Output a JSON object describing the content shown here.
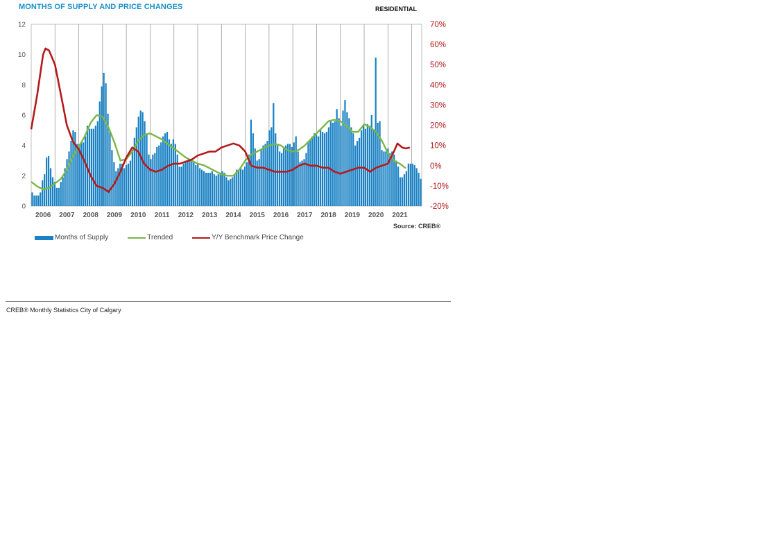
{
  "title": "MONTHS OF SUPPLY AND PRICE CHANGES",
  "subtitle": "RESIDENTIAL",
  "source": "Source: CREB®",
  "footer": "CREB® Monthly Statistics City of Calgary",
  "colors": {
    "bars": "#1a82c4",
    "trended": "#7ab648",
    "price": "#b41a1a",
    "title": "#1a8fc9"
  },
  "chart_data": {
    "type": "bar",
    "title": "MONTHS OF SUPPLY AND PRICE CHANGES",
    "left_axis": {
      "ylim": [
        0,
        12
      ],
      "ticks": [
        "0",
        "2",
        "4",
        "6",
        "8",
        "10",
        "12"
      ]
    },
    "right_axis": {
      "ylim": [
        -20,
        70
      ],
      "ticks": [
        "-20%",
        "-10%",
        "0%",
        "10%",
        "20%",
        "30%",
        "40%",
        "50%",
        "60%",
        "70%"
      ]
    },
    "x_ticks": [
      "2006",
      "2007",
      "2008",
      "2009",
      "2010",
      "2011",
      "2012",
      "2013",
      "2014",
      "2015",
      "2016",
      "2017",
      "2018",
      "2019",
      "2020",
      "2021"
    ],
    "legend": [
      "Months of Supply",
      "Trended",
      "Y/Y Benchmark Price Change"
    ],
    "series": [
      {
        "name": "Months of Supply",
        "kind": "bar",
        "axis": "left",
        "monthly_values": [
          0.9,
          0.7,
          0.7,
          0.7,
          0.9,
          1.7,
          2.1,
          3.2,
          3.3,
          2.5,
          1.9,
          1.6,
          1.2,
          1.2,
          1.6,
          1.9,
          2.5,
          3.1,
          3.6,
          4.3,
          5.0,
          4.9,
          4.1,
          4.1,
          4.2,
          4.2,
          4.6,
          5.3,
          5.1,
          5.1,
          5.1,
          5.3,
          5.6,
          6.9,
          7.9,
          8.8,
          8.1,
          6.1,
          4.9,
          3.7,
          2.9,
          2.3,
          2.5,
          2.8,
          2.8,
          2.5,
          2.7,
          2.8,
          3.0,
          3.7,
          4.5,
          5.2,
          5.9,
          6.3,
          6.2,
          5.6,
          4.7,
          3.4,
          3.1,
          3.4,
          3.5,
          3.9,
          4.0,
          4.2,
          4.6,
          4.8,
          4.9,
          4.4,
          4.1,
          4.4,
          4.1,
          3.4,
          2.6,
          2.6,
          2.8,
          3.0,
          3.0,
          3.1,
          3.0,
          2.9,
          2.7,
          2.8,
          2.5,
          2.4,
          2.3,
          2.2,
          2.2,
          2.2,
          2.3,
          2.1,
          2.0,
          2.1,
          2.2,
          2.3,
          2.2,
          1.9,
          1.7,
          1.8,
          1.9,
          2.1,
          2.4,
          2.4,
          2.5,
          2.4,
          2.6,
          2.9,
          3.4,
          5.7,
          4.8,
          3.8,
          3.0,
          3.1,
          3.7,
          4.0,
          4.1,
          4.3,
          5.0,
          5.2,
          6.8,
          4.8,
          4.0,
          3.6,
          3.5,
          3.8,
          4.0,
          4.1,
          4.1,
          3.9,
          4.2,
          4.6,
          3.6,
          2.9,
          3.0,
          3.1,
          3.5,
          4.2,
          4.4,
          4.6,
          4.8,
          4.7,
          4.6,
          5.0,
          4.9,
          4.8,
          4.9,
          5.2,
          5.6,
          5.5,
          5.6,
          6.4,
          5.8,
          5.3,
          6.3,
          7.0,
          6.2,
          5.8,
          5.2,
          4.8,
          4.0,
          4.3,
          4.5,
          5.0,
          5.3,
          5.1,
          5.4,
          5.3,
          6.0,
          5.0,
          9.8,
          5.5,
          5.6,
          3.7,
          3.6,
          3.6,
          3.8,
          3.5,
          3.6,
          3.4,
          3.0,
          2.6,
          1.9,
          1.9,
          2.1,
          2.3,
          2.8,
          2.8,
          2.8,
          2.7,
          2.5,
          2.2,
          1.8
        ]
      },
      {
        "name": "Trended",
        "kind": "line",
        "axis": "left",
        "points": [
          [
            2006.0,
            1.6
          ],
          [
            2006.25,
            1.3
          ],
          [
            2006.5,
            1.1
          ],
          [
            2006.75,
            1.2
          ],
          [
            2007.0,
            1.5
          ],
          [
            2007.25,
            1.8
          ],
          [
            2007.5,
            2.4
          ],
          [
            2007.75,
            3.3
          ],
          [
            2008.0,
            3.9
          ],
          [
            2008.25,
            4.6
          ],
          [
            2008.5,
            5.5
          ],
          [
            2008.75,
            6.0
          ],
          [
            2009.0,
            5.9
          ],
          [
            2009.25,
            5.2
          ],
          [
            2009.5,
            4.2
          ],
          [
            2009.75,
            3.0
          ],
          [
            2010.0,
            3.1
          ],
          [
            2010.25,
            3.6
          ],
          [
            2010.5,
            4.3
          ],
          [
            2010.75,
            4.7
          ],
          [
            2011.0,
            4.8
          ],
          [
            2011.25,
            4.6
          ],
          [
            2011.5,
            4.4
          ],
          [
            2011.75,
            4.1
          ],
          [
            2012.0,
            3.8
          ],
          [
            2012.25,
            3.5
          ],
          [
            2012.5,
            3.2
          ],
          [
            2012.75,
            3.0
          ],
          [
            2013.0,
            2.8
          ],
          [
            2013.25,
            2.7
          ],
          [
            2013.5,
            2.5
          ],
          [
            2013.75,
            2.3
          ],
          [
            2014.0,
            2.1
          ],
          [
            2014.25,
            2.0
          ],
          [
            2014.5,
            2.0
          ],
          [
            2014.75,
            2.4
          ],
          [
            2015.0,
            3.0
          ],
          [
            2015.25,
            3.4
          ],
          [
            2015.5,
            3.6
          ],
          [
            2015.75,
            3.8
          ],
          [
            2016.0,
            4.0
          ],
          [
            2016.25,
            4.1
          ],
          [
            2016.5,
            4.0
          ],
          [
            2016.75,
            3.7
          ],
          [
            2017.0,
            3.6
          ],
          [
            2017.25,
            3.7
          ],
          [
            2017.5,
            4.0
          ],
          [
            2017.75,
            4.4
          ],
          [
            2018.0,
            4.8
          ],
          [
            2018.25,
            5.2
          ],
          [
            2018.5,
            5.6
          ],
          [
            2018.75,
            5.7
          ],
          [
            2019.0,
            5.6
          ],
          [
            2019.25,
            5.3
          ],
          [
            2019.5,
            4.9
          ],
          [
            2019.75,
            4.9
          ],
          [
            2020.0,
            5.4
          ],
          [
            2020.25,
            5.2
          ],
          [
            2020.5,
            4.9
          ],
          [
            2020.75,
            4.3
          ],
          [
            2021.0,
            3.5
          ],
          [
            2021.25,
            3.0
          ],
          [
            2021.5,
            2.8
          ],
          [
            2021.75,
            2.5
          ]
        ]
      },
      {
        "name": "Y/Y Benchmark Price Change",
        "kind": "line",
        "axis": "right",
        "points": [
          [
            2006.0,
            18
          ],
          [
            2006.25,
            35
          ],
          [
            2006.5,
            55
          ],
          [
            2006.6,
            58
          ],
          [
            2006.75,
            57
          ],
          [
            2007.0,
            50
          ],
          [
            2007.25,
            35
          ],
          [
            2007.5,
            20
          ],
          [
            2007.75,
            12
          ],
          [
            2008.0,
            8
          ],
          [
            2008.25,
            2
          ],
          [
            2008.5,
            -5
          ],
          [
            2008.75,
            -10
          ],
          [
            2009.0,
            -11
          ],
          [
            2009.25,
            -13
          ],
          [
            2009.5,
            -9
          ],
          [
            2009.75,
            -3
          ],
          [
            2010.0,
            4
          ],
          [
            2010.25,
            9
          ],
          [
            2010.5,
            7
          ],
          [
            2010.75,
            1
          ],
          [
            2011.0,
            -2
          ],
          [
            2011.25,
            -3
          ],
          [
            2011.5,
            -2
          ],
          [
            2011.75,
            0
          ],
          [
            2012.0,
            1
          ],
          [
            2012.25,
            1
          ],
          [
            2012.5,
            2
          ],
          [
            2012.75,
            3
          ],
          [
            2013.0,
            5
          ],
          [
            2013.25,
            6
          ],
          [
            2013.5,
            7
          ],
          [
            2013.75,
            7
          ],
          [
            2014.0,
            9
          ],
          [
            2014.25,
            10
          ],
          [
            2014.5,
            11
          ],
          [
            2014.75,
            10
          ],
          [
            2015.0,
            7
          ],
          [
            2015.25,
            0
          ],
          [
            2015.5,
            -1
          ],
          [
            2015.75,
            -1
          ],
          [
            2016.0,
            -2
          ],
          [
            2016.25,
            -3
          ],
          [
            2016.5,
            -3
          ],
          [
            2016.75,
            -3
          ],
          [
            2017.0,
            -2
          ],
          [
            2017.25,
            0
          ],
          [
            2017.5,
            1
          ],
          [
            2017.75,
            0
          ],
          [
            2018.0,
            0
          ],
          [
            2018.25,
            -1
          ],
          [
            2018.5,
            -1
          ],
          [
            2018.75,
            -3
          ],
          [
            2019.0,
            -4
          ],
          [
            2019.25,
            -3
          ],
          [
            2019.5,
            -2
          ],
          [
            2019.75,
            -1
          ],
          [
            2020.0,
            -1
          ],
          [
            2020.25,
            -3
          ],
          [
            2020.5,
            -1
          ],
          [
            2020.75,
            0
          ],
          [
            2021.0,
            1
          ],
          [
            2021.25,
            7
          ],
          [
            2021.4,
            11
          ],
          [
            2021.6,
            9
          ],
          [
            2021.75,
            8.5
          ],
          [
            2021.92,
            9
          ]
        ]
      }
    ]
  }
}
